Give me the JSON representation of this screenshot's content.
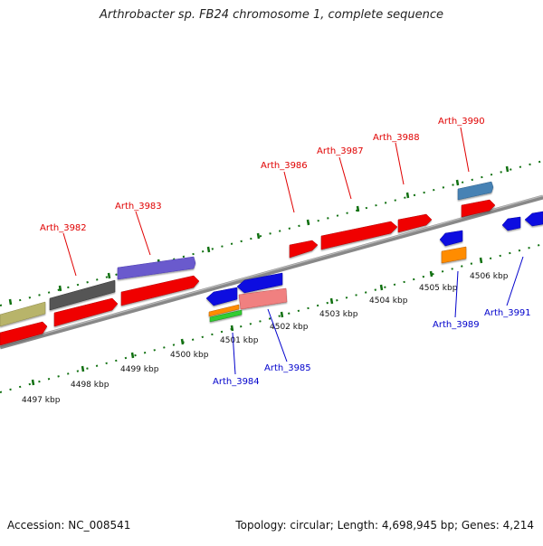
{
  "header": {
    "title": "Arthrobacter sp. FB24 chromosome 1, complete sequence"
  },
  "footer": {
    "accession": "Accession: NC_008541",
    "summary": "Topology: circular; Length: 4,698,945 bp; Genes: 4,214"
  },
  "colors": {
    "red_gene": "#f00000",
    "blue_gene": "#1010e0",
    "purple_gene": "#6a5acd",
    "gray_gene": "#555555",
    "khaki_gene": "#b8b46a",
    "pink_gene": "#f08080",
    "orange_gene": "#ff8c00",
    "green_gene": "#33cc33",
    "steelblue_gene": "#4682b4",
    "label_red": "#e00000",
    "label_blue": "#0000cc",
    "tick_green": "#006400",
    "backbone": "#888888"
  },
  "ruler": {
    "tick_labels": [
      "4497 kbp",
      "4498 kbp",
      "4499 kbp",
      "4500 kbp",
      "4501 kbp",
      "4502 kbp",
      "4503 kbp",
      "4504 kbp",
      "4505 kbp",
      "4506 kbp"
    ]
  },
  "gene_labels": {
    "forward": [
      "Arth_3982",
      "Arth_3983",
      "Arth_3986",
      "Arth_3987",
      "Arth_3988",
      "Arth_3990"
    ],
    "reverse": [
      "Arth_3984",
      "Arth_3985",
      "Arth_3989",
      "Arth_3991"
    ]
  }
}
